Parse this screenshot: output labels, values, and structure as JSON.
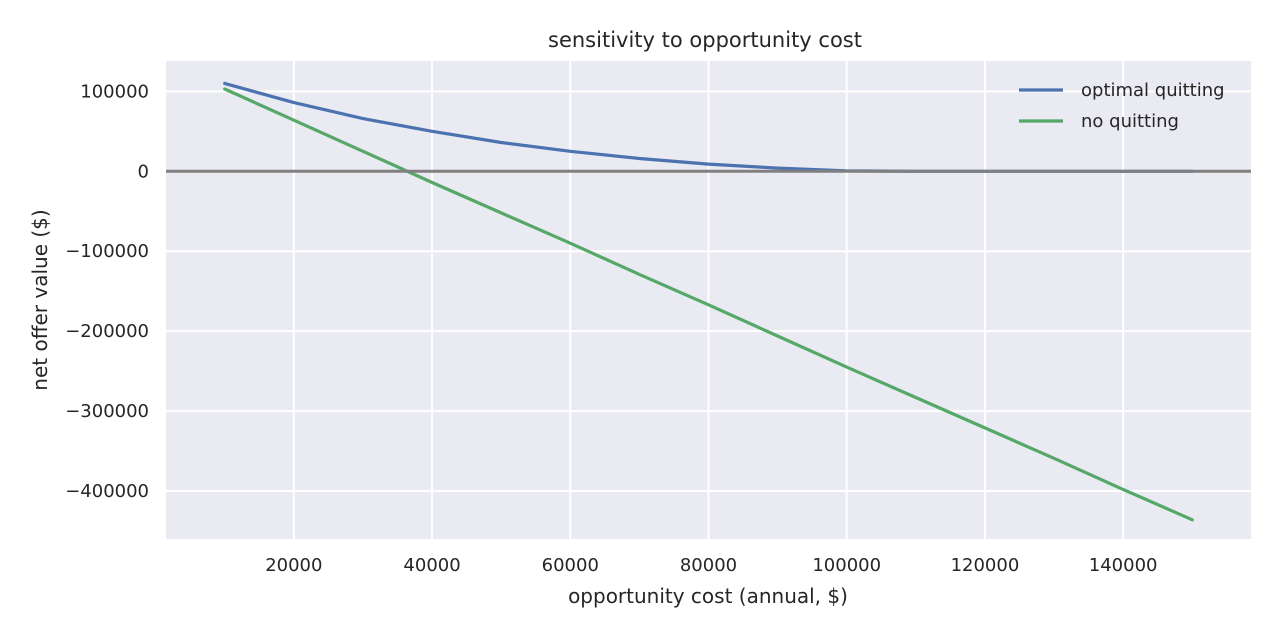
{
  "chart_data": {
    "type": "line",
    "title": "sensitivity to opportunity cost",
    "xlabel": "opportunity cost (annual, $)",
    "ylabel": "net offer value ($)",
    "xlim": [
      1500,
      158500
    ],
    "ylim": [
      -460000,
      138000
    ],
    "xticks": [
      20000,
      40000,
      60000,
      80000,
      100000,
      120000,
      140000
    ],
    "yticks": [
      100000,
      0,
      -100000,
      -200000,
      -300000,
      -400000
    ],
    "xtick_labels": [
      "20000",
      "40000",
      "60000",
      "80000",
      "100000",
      "120000",
      "140000"
    ],
    "ytick_labels": [
      "100000",
      "0",
      "−100000",
      "−200000",
      "−300000",
      "−400000"
    ],
    "grid": true,
    "legend_position": "top-right",
    "reference_line_y": 0,
    "series": [
      {
        "name": "optimal quitting",
        "color": "#4c72b0",
        "x": [
          10000,
          20000,
          30000,
          40000,
          50000,
          60000,
          70000,
          80000,
          90000,
          100000,
          110000,
          120000,
          130000,
          140000,
          150000
        ],
        "y": [
          110000,
          86000,
          66000,
          50000,
          36000,
          25000,
          16000,
          9000,
          4000,
          500,
          0,
          0,
          0,
          0,
          0
        ]
      },
      {
        "name": "no quitting",
        "color": "#55a868",
        "x": [
          10000,
          20000,
          30000,
          40000,
          50000,
          60000,
          70000,
          80000,
          90000,
          100000,
          110000,
          120000,
          130000,
          140000,
          150000
        ],
        "y": [
          103000,
          64000,
          25000,
          -14000,
          -52000,
          -90000,
          -129000,
          -167000,
          -206000,
          -245000,
          -283000,
          -321000,
          -359000,
          -398000,
          -436000
        ]
      }
    ]
  }
}
